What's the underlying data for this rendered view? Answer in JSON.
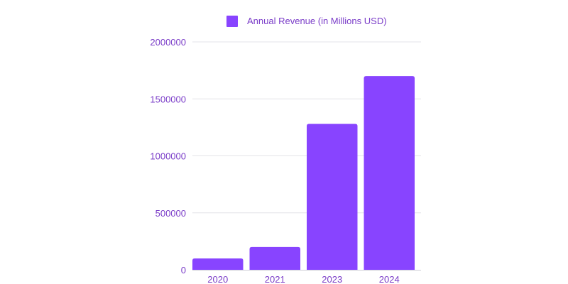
{
  "chart_data": {
    "type": "bar",
    "title": "",
    "xlabel": "",
    "ylabel": "",
    "categories": [
      "2020",
      "2021",
      "2023",
      "2024"
    ],
    "series": [
      {
        "name": "Annual Revenue (in Millions USD)",
        "values": [
          100000,
          200000,
          1280000,
          1700000
        ],
        "color": "#8844ff"
      }
    ],
    "ylim": [
      0,
      2000000
    ],
    "yticks": [
      "0",
      "500000",
      "1000000",
      "1500000",
      "2000000"
    ],
    "grid": true,
    "legend_position": "top-center"
  },
  "colors": {
    "bar": "#8844ff",
    "tick_text": "#7a3cc8",
    "gridline": "#e3e3e8",
    "axis_line": "#cfcfd6"
  }
}
